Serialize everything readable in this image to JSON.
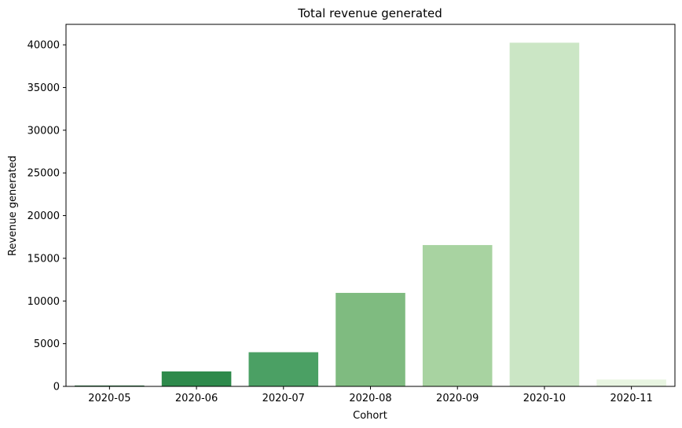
{
  "chart_data": {
    "type": "bar",
    "title": "Total revenue generated",
    "xlabel": "Cohort",
    "ylabel": "Revenue generated",
    "categories": [
      "2020-05",
      "2020-06",
      "2020-07",
      "2020-08",
      "2020-09",
      "2020-10",
      "2020-11"
    ],
    "values": [
      100,
      1750,
      4000,
      10950,
      16550,
      40250,
      800
    ],
    "colors": [
      "#1d6b34",
      "#2e8a4b",
      "#4ba064",
      "#7fbb80",
      "#a8d3a1",
      "#cbe6c5",
      "#e8f5e1"
    ],
    "ylim": [
      0,
      42400
    ],
    "yticks": [
      0,
      5000,
      10000,
      15000,
      20000,
      25000,
      30000,
      35000,
      40000
    ],
    "grid": false,
    "legend": "none"
  }
}
